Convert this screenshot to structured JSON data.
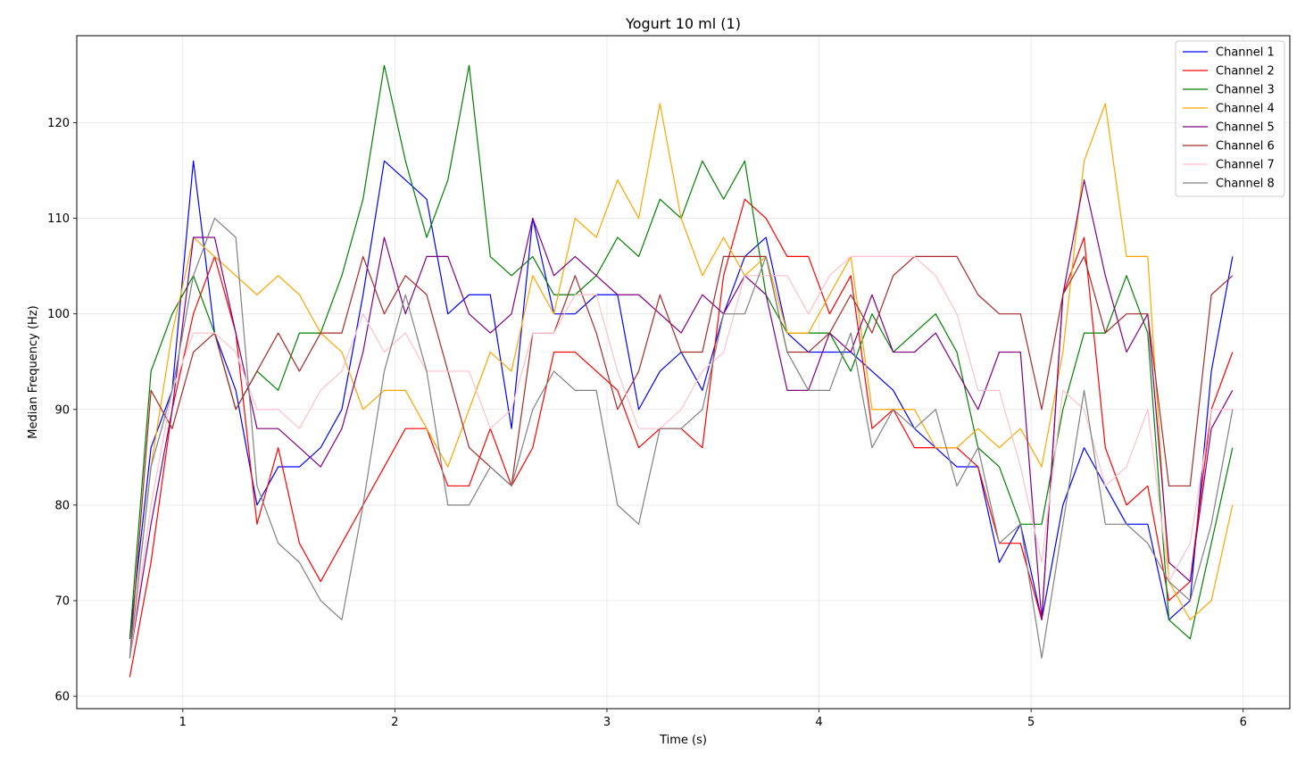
{
  "chart_data": {
    "type": "line",
    "title": "Yogurt 10 ml (1)",
    "xlabel": "Time (s)",
    "ylabel": "Median Frequency (Hz)",
    "xlim": [
      0.5,
      6.22
    ],
    "ylim": [
      58.7,
      129.1
    ],
    "xticks": [
      1,
      2,
      3,
      4,
      5,
      6
    ],
    "yticks": [
      60,
      70,
      80,
      90,
      100,
      110,
      120
    ],
    "grid": true,
    "legend_position": "top-right",
    "x": [
      0.75,
      0.85,
      0.95,
      1.05,
      1.15,
      1.25,
      1.35,
      1.45,
      1.55,
      1.65,
      1.75,
      1.85,
      1.95,
      2.05,
      2.15,
      2.25,
      2.35,
      2.45,
      2.55,
      2.65,
      2.75,
      2.85,
      2.95,
      3.05,
      3.15,
      3.25,
      3.35,
      3.45,
      3.55,
      3.65,
      3.75,
      3.85,
      3.95,
      4.05,
      4.15,
      4.25,
      4.35,
      4.45,
      4.55,
      4.65,
      4.75,
      4.85,
      4.95,
      5.05,
      5.15,
      5.25,
      5.35,
      5.45,
      5.55,
      5.65,
      5.75,
      5.85,
      5.95
    ],
    "series": [
      {
        "name": "Channel 1",
        "color": "#0000ff",
        "values": [
          66,
          86,
          92,
          116,
          98,
          92,
          80,
          84,
          84,
          86,
          90,
          102,
          116,
          114,
          112,
          100,
          102,
          102,
          88,
          110,
          100,
          100,
          102,
          102,
          90,
          94,
          96,
          92,
          100,
          106,
          108,
          98,
          96,
          96,
          96,
          94,
          92,
          88,
          86,
          84,
          84,
          74,
          78,
          68,
          80,
          86,
          82,
          78,
          78,
          68,
          70,
          94,
          106
        ]
      },
      {
        "name": "Channel 2",
        "color": "#ff0000",
        "values": [
          62,
          74,
          90,
          100,
          106,
          98,
          78,
          86,
          76,
          72,
          76,
          80,
          84,
          88,
          88,
          82,
          82,
          88,
          82,
          86,
          96,
          96,
          94,
          92,
          86,
          88,
          88,
          86,
          104,
          112,
          110,
          106,
          106,
          100,
          104,
          88,
          90,
          86,
          86,
          86,
          84,
          76,
          76,
          68,
          102,
          108,
          86,
          80,
          82,
          70,
          72,
          90,
          96
        ]
      },
      {
        "name": "Channel 3",
        "color": "#008000",
        "values": [
          66,
          94,
          100,
          104,
          98,
          90,
          94,
          92,
          98,
          98,
          104,
          112,
          126,
          116,
          108,
          114,
          126,
          106,
          104,
          106,
          102,
          102,
          104,
          108,
          106,
          112,
          110,
          116,
          112,
          116,
          102,
          98,
          98,
          98,
          94,
          100,
          96,
          98,
          100,
          96,
          86,
          84,
          78,
          78,
          90,
          98,
          98,
          104,
          98,
          68,
          66,
          76,
          86
        ]
      },
      {
        "name": "Channel 4",
        "color": "#ffa500",
        "values": [
          64,
          84,
          98,
          108,
          106,
          104,
          102,
          104,
          102,
          98,
          96,
          90,
          92,
          92,
          88,
          84,
          90,
          96,
          94,
          104,
          100,
          110,
          108,
          114,
          110,
          122,
          110,
          104,
          108,
          104,
          106,
          98,
          98,
          102,
          106,
          90,
          90,
          90,
          86,
          86,
          88,
          86,
          88,
          84,
          96,
          116,
          122,
          106,
          106,
          72,
          68,
          70,
          80
        ]
      },
      {
        "name": "Channel 5",
        "color": "#800080",
        "values": [
          64,
          78,
          90,
          108,
          108,
          98,
          88,
          88,
          86,
          84,
          88,
          96,
          108,
          100,
          106,
          106,
          100,
          98,
          100,
          110,
          104,
          106,
          104,
          102,
          102,
          100,
          98,
          102,
          100,
          104,
          102,
          92,
          92,
          98,
          96,
          102,
          96,
          96,
          98,
          94,
          90,
          96,
          96,
          68,
          102,
          114,
          104,
          96,
          100,
          74,
          72,
          88,
          92
        ]
      },
      {
        "name": "Channel 6",
        "color": "#a52a2a",
        "values": [
          64,
          92,
          88,
          96,
          98,
          90,
          94,
          98,
          94,
          98,
          98,
          106,
          100,
          104,
          102,
          94,
          86,
          84,
          82,
          98,
          98,
          104,
          98,
          90,
          94,
          102,
          96,
          96,
          106,
          106,
          106,
          96,
          96,
          98,
          102,
          98,
          104,
          106,
          106,
          106,
          102,
          100,
          100,
          90,
          102,
          106,
          98,
          100,
          100,
          82,
          82,
          102,
          104
        ]
      },
      {
        "name": "Channel 7",
        "color": "#ffc0cb",
        "values": [
          64,
          80,
          92,
          98,
          98,
          96,
          90,
          90,
          88,
          92,
          94,
          100,
          96,
          98,
          94,
          94,
          94,
          88,
          90,
          98,
          98,
          102,
          102,
          94,
          88,
          88,
          90,
          94,
          96,
          104,
          104,
          104,
          100,
          104,
          106,
          106,
          106,
          106,
          104,
          100,
          92,
          92,
          84,
          74,
          92,
          90,
          82,
          84,
          90,
          72,
          76,
          90,
          90
        ]
      },
      {
        "name": "Channel 8",
        "color": "#808080",
        "values": [
          64,
          84,
          92,
          104,
          110,
          108,
          82,
          76,
          74,
          70,
          68,
          80,
          94,
          102,
          94,
          80,
          80,
          84,
          82,
          90,
          94,
          92,
          92,
          80,
          78,
          88,
          88,
          90,
          100,
          100,
          106,
          96,
          92,
          92,
          98,
          86,
          90,
          88,
          90,
          82,
          86,
          76,
          78,
          64,
          78,
          92,
          78,
          78,
          76,
          72,
          70,
          78,
          90
        ]
      }
    ]
  }
}
